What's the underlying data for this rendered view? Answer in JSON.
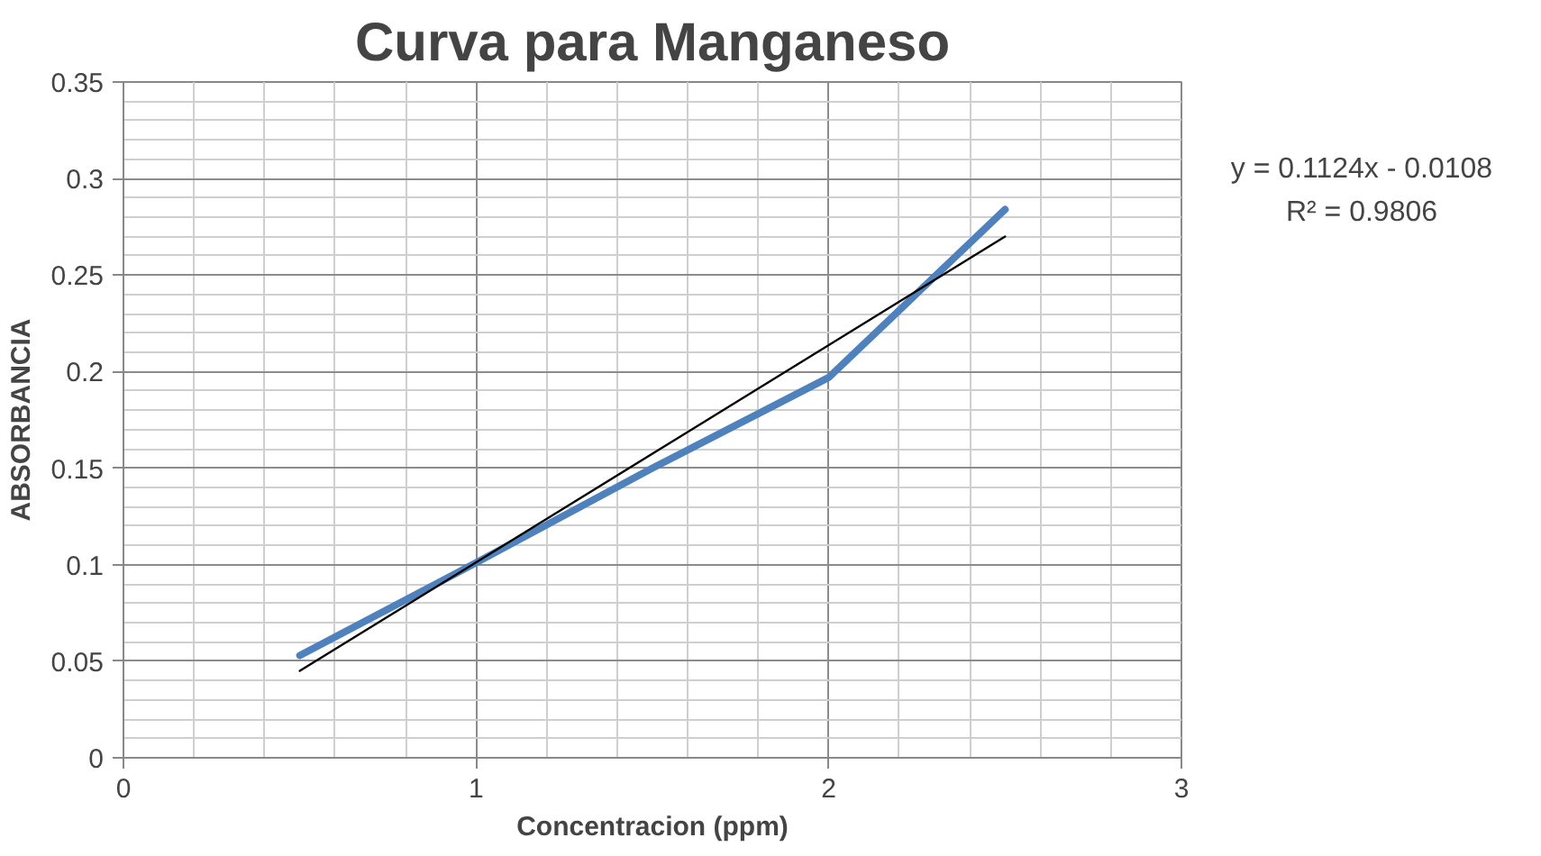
{
  "chart_data": {
    "type": "line",
    "title": "Curva para Manganeso",
    "xlabel": "Concentracion (ppm)",
    "ylabel": "ABSORBANCIA",
    "x": [
      0.5,
      1,
      1.5,
      2,
      2.5
    ],
    "series": [
      {
        "color": "#4f81bd",
        "values": [
          0.053,
          0.101,
          0.15,
          0.197,
          0.284
        ]
      },
      {
        "type": "line",
        "color": "#000000",
        "x": [
          0.5,
          2.5
        ],
        "values": [
          0.045,
          0.27
        ]
      }
    ],
    "xlim": [
      0,
      3
    ],
    "xticks": [
      0,
      1,
      2,
      3
    ],
    "ylim": [
      0,
      0.35
    ],
    "yticks": [
      0,
      0.05,
      0.1,
      0.15,
      0.2,
      0.25,
      0.3,
      0.35
    ],
    "grid": true,
    "annotations": [
      "y = 0.1124x - 0.0108",
      "R² = 0.9806"
    ]
  }
}
